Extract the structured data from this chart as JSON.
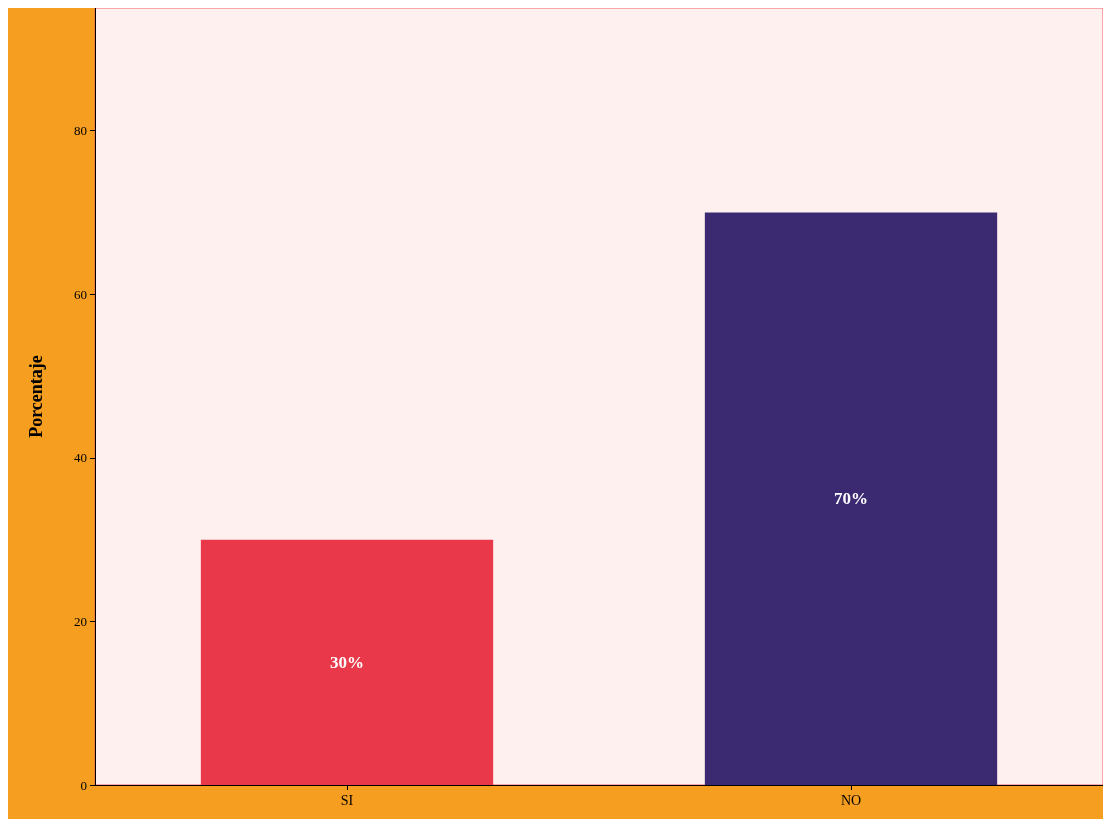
{
  "chart_data": {
    "type": "bar",
    "ylabel": "Porcentaje",
    "categories": [
      "SI",
      "NO"
    ],
    "values": [
      30,
      70
    ],
    "colors": [
      "#e8384a",
      "#3b2a72"
    ],
    "value_labels": [
      "30%",
      "70%"
    ],
    "ylim": [
      0,
      95
    ],
    "yticks": [
      0,
      20,
      40,
      60,
      80
    ],
    "grid": false
  }
}
